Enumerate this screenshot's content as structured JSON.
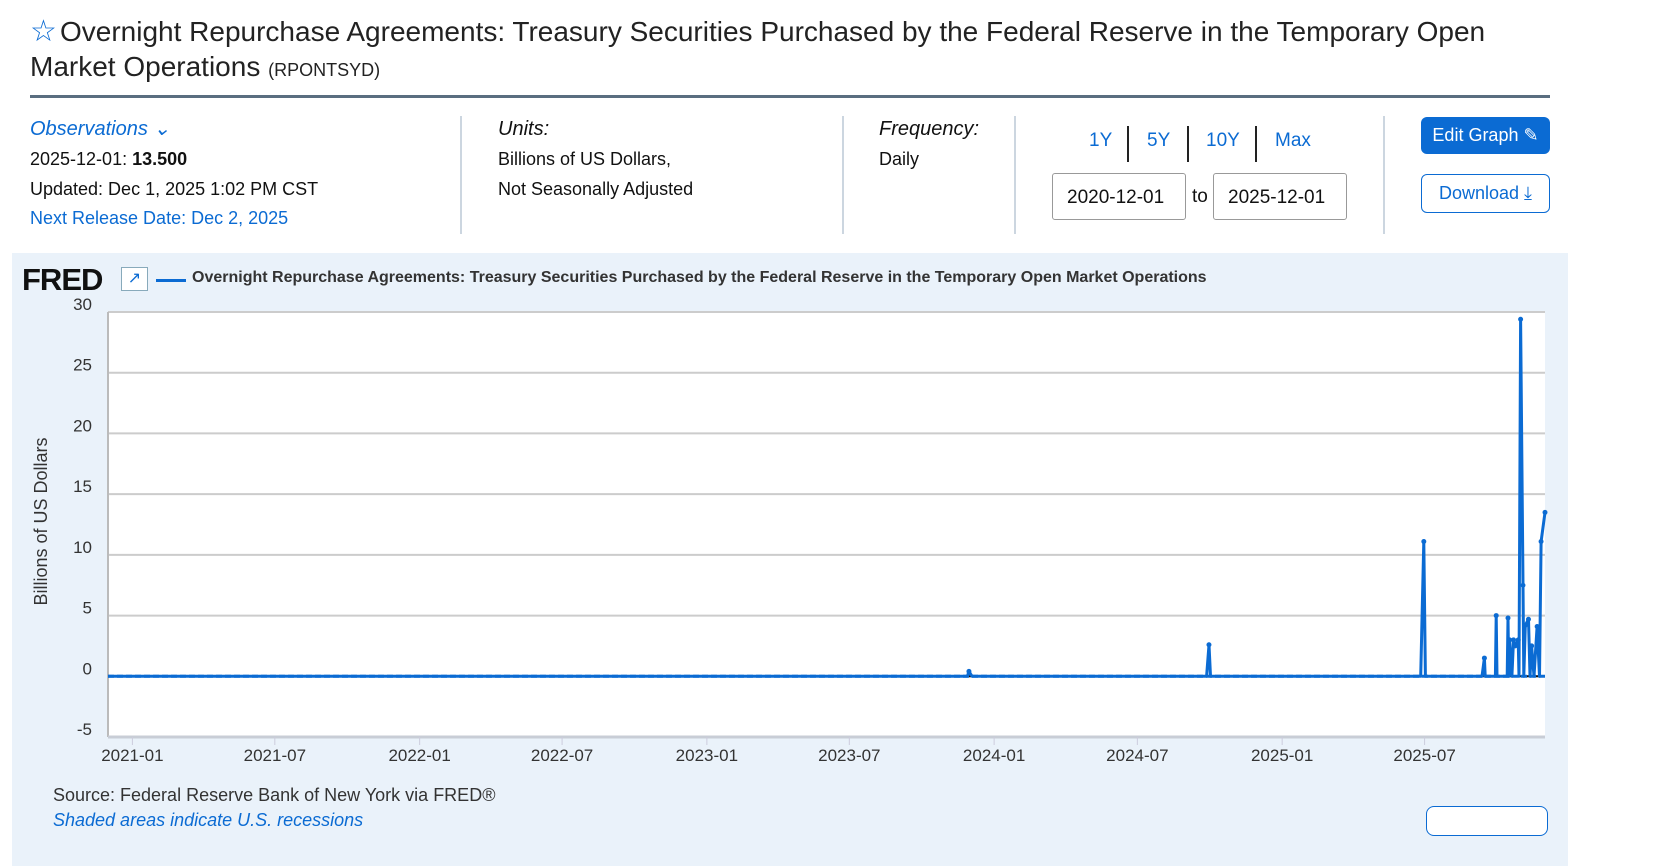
{
  "header": {
    "title": "Overnight Repurchase Agreements: Treasury Securities Purchased by the Federal Reserve in the Temporary Open Market Operations",
    "series_id": "(RPONTSYD)",
    "star_icon": "star-outline-icon"
  },
  "observations": {
    "label": "Observations",
    "latest_date": "2025-12-01:",
    "latest_value": "13.500",
    "updated": "Updated: Dec 1, 2025 1:02 PM CST",
    "next_release": "Next Release Date: Dec 2, 2025"
  },
  "units": {
    "label": "Units:",
    "line1": "Billions of US Dollars,",
    "line2": "Not Seasonally Adjusted"
  },
  "frequency": {
    "label": "Frequency:",
    "value": "Daily"
  },
  "ranges": [
    "1Y",
    "5Y",
    "10Y",
    "Max"
  ],
  "date_range": {
    "start": "2020-12-01",
    "to": "to",
    "end": "2025-12-01"
  },
  "buttons": {
    "edit": "Edit Graph",
    "download": "Download"
  },
  "chart_header": {
    "logo": "FRED",
    "legend": "Overnight Repurchase Agreements: Treasury Securities Purchased by the Federal Reserve in the Temporary Open Market Operations"
  },
  "footer": {
    "source": "Source: Federal Reserve Bank of New York via FRED®",
    "shaded": "Shaded areas indicate U.S. recessions"
  },
  "colors": {
    "series": "#0b6bd3",
    "panel": "#eaf2fa"
  },
  "chart_data": {
    "type": "line",
    "ylabel": "Billions of US Dollars",
    "ylim": [
      -5,
      30
    ],
    "yticks": [
      30,
      25,
      20,
      15,
      10,
      5,
      0,
      -5
    ],
    "xlim": [
      "2020-12-01",
      "2025-12-01"
    ],
    "xticks": [
      "2021-01",
      "2021-07",
      "2022-01",
      "2022-07",
      "2023-01",
      "2023-07",
      "2024-01",
      "2024-07",
      "2025-01",
      "2025-07"
    ],
    "grid": true,
    "series": [
      {
        "name": "Overnight Repurchase Agreements: Treasury Securities Purchased by the Federal Reserve in the Temporary Open Market Operations",
        "points": [
          [
            "2020-12-01",
            0
          ],
          [
            "2023-11-28",
            0
          ],
          [
            "2023-11-30",
            0.4
          ],
          [
            "2023-12-04",
            0
          ],
          [
            "2024-09-27",
            0
          ],
          [
            "2024-09-30",
            2.6
          ],
          [
            "2024-10-02",
            0
          ],
          [
            "2025-06-26",
            0
          ],
          [
            "2025-06-30",
            11.1
          ],
          [
            "2025-07-02",
            0
          ],
          [
            "2025-09-12",
            0
          ],
          [
            "2025-09-15",
            1.5
          ],
          [
            "2025-09-16",
            0
          ],
          [
            "2025-09-29",
            0
          ],
          [
            "2025-09-30",
            5.0
          ],
          [
            "2025-10-01",
            0
          ],
          [
            "2025-10-14",
            0
          ],
          [
            "2025-10-15",
            4.8
          ],
          [
            "2025-10-16",
            0
          ],
          [
            "2025-10-17",
            3.0
          ],
          [
            "2025-10-20",
            0
          ],
          [
            "2025-10-22",
            3.0
          ],
          [
            "2025-10-24",
            2.5
          ],
          [
            "2025-10-28",
            3.0
          ],
          [
            "2025-10-29",
            0
          ],
          [
            "2025-10-31",
            29.4
          ],
          [
            "2025-11-03",
            7.5
          ],
          [
            "2025-11-04",
            0
          ],
          [
            "2025-11-06",
            4.2
          ],
          [
            "2025-11-10",
            4.7
          ],
          [
            "2025-11-12",
            0
          ],
          [
            "2025-11-14",
            2.5
          ],
          [
            "2025-11-17",
            0
          ],
          [
            "2025-11-21",
            4.1
          ],
          [
            "2025-11-24",
            0
          ],
          [
            "2025-11-26",
            11.1
          ],
          [
            "2025-12-01",
            13.5
          ]
        ]
      }
    ]
  }
}
